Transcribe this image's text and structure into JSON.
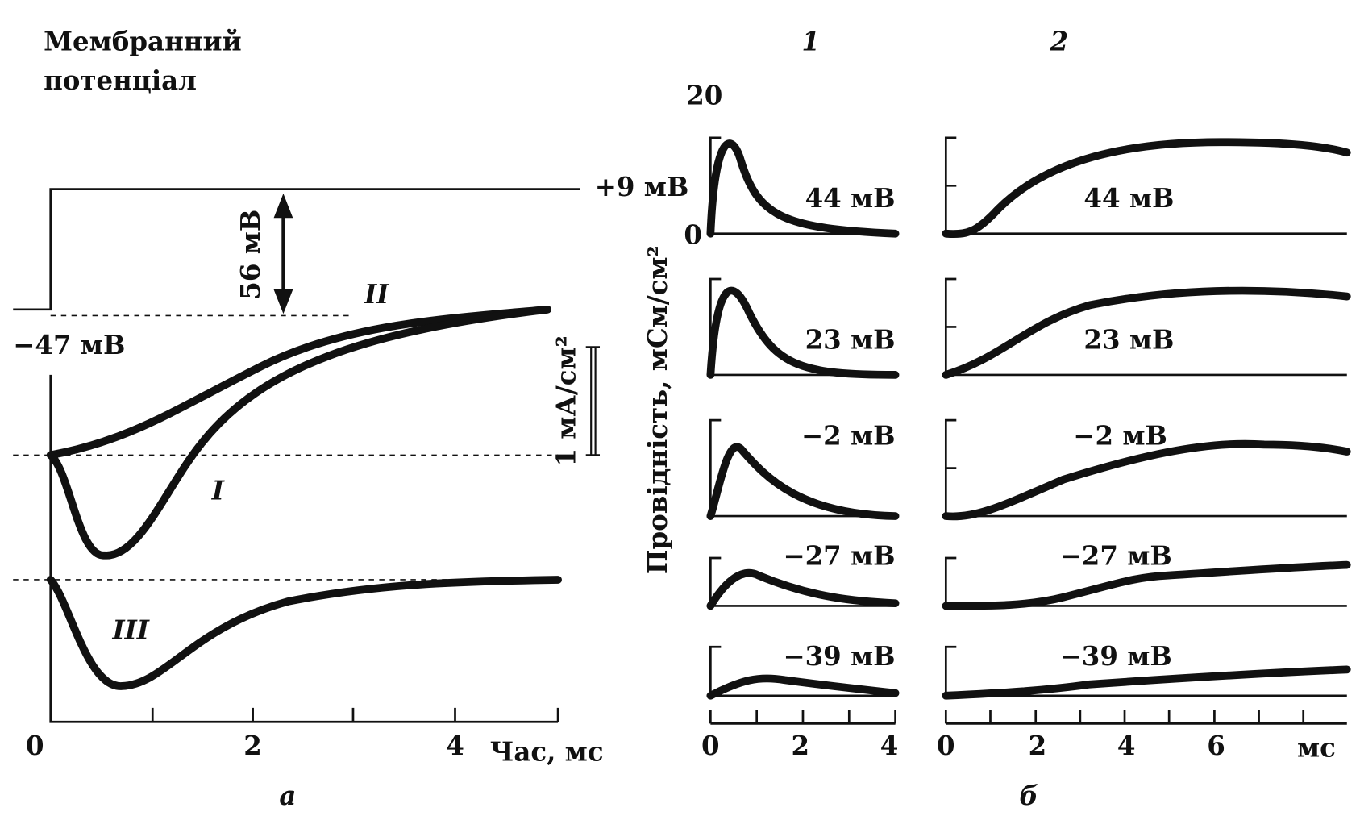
{
  "title": [
    "Мембранний",
    "потенціал"
  ],
  "column_labels": [
    "1",
    "2"
  ],
  "panel_a": {
    "step_top": "+9 мВ",
    "step_size": "56 мВ",
    "rest": "−47 мВ",
    "scale": "1 мА/см²",
    "curves": [
      "II",
      "I",
      "III"
    ],
    "xticks": [
      "0",
      "2",
      "4"
    ],
    "xlabel": "Час, мс",
    "caption": "а"
  },
  "panel_b": {
    "ylabel": "Провідність, мСм/см²",
    "ymax": "20",
    "ymin": "0",
    "rows": [
      "44 мВ",
      "23 мВ",
      "−2 мВ",
      "−27 мВ",
      "−39 мВ"
    ],
    "xticks_1": [
      "0",
      "2",
      "4"
    ],
    "xticks_2": [
      "0",
      "2",
      "4",
      "6"
    ],
    "xunit": "мс",
    "caption": "б"
  }
}
